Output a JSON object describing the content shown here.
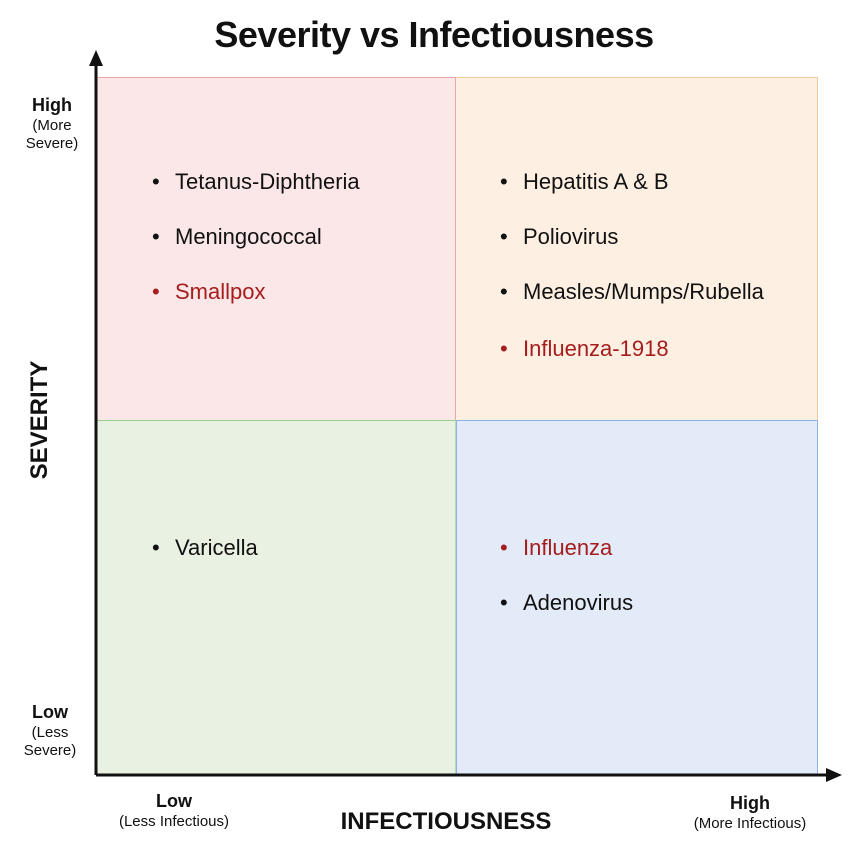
{
  "title": "Severity vs Infectiousness",
  "y_axis": {
    "label": "SEVERITY",
    "high": {
      "label": "High",
      "sub1": "(More",
      "sub2": "Severe)"
    },
    "low": {
      "label": "Low",
      "sub1": "(Less",
      "sub2": "Severe)"
    }
  },
  "x_axis": {
    "label": "INFECTIOUSNESS",
    "low": {
      "label": "Low",
      "sub": "(Less Infectious)"
    },
    "high": {
      "label": "High",
      "sub": "(More Infectious)"
    }
  },
  "quadrants": {
    "high_severity_low_infectious": {
      "color": "#fbe7e7",
      "items": [
        {
          "label": "Tetanus-Diphtheria",
          "color": "#111111"
        },
        {
          "label": "Meningococcal",
          "color": "#111111"
        },
        {
          "label": "Smallpox",
          "color": "#a51d1d"
        }
      ]
    },
    "high_severity_high_infectious": {
      "color": "#fdf0e3",
      "items": [
        {
          "label": "Hepatitis A & B",
          "color": "#111111"
        },
        {
          "label": "Poliovirus",
          "color": "#111111"
        },
        {
          "label": "Measles/Mumps/Rubella",
          "color": "#111111"
        },
        {
          "label": "Influenza-1918",
          "color": "#a51d1d"
        }
      ]
    },
    "low_severity_low_infectious": {
      "color": "#e9f1e3",
      "items": [
        {
          "label": "Varicella",
          "color": "#111111"
        }
      ]
    },
    "low_severity_high_infectious": {
      "color": "#e3ebf8",
      "items": [
        {
          "label": "Influenza",
          "color": "#a51d1d"
        },
        {
          "label": "Adenovirus",
          "color": "#111111"
        }
      ]
    }
  }
}
